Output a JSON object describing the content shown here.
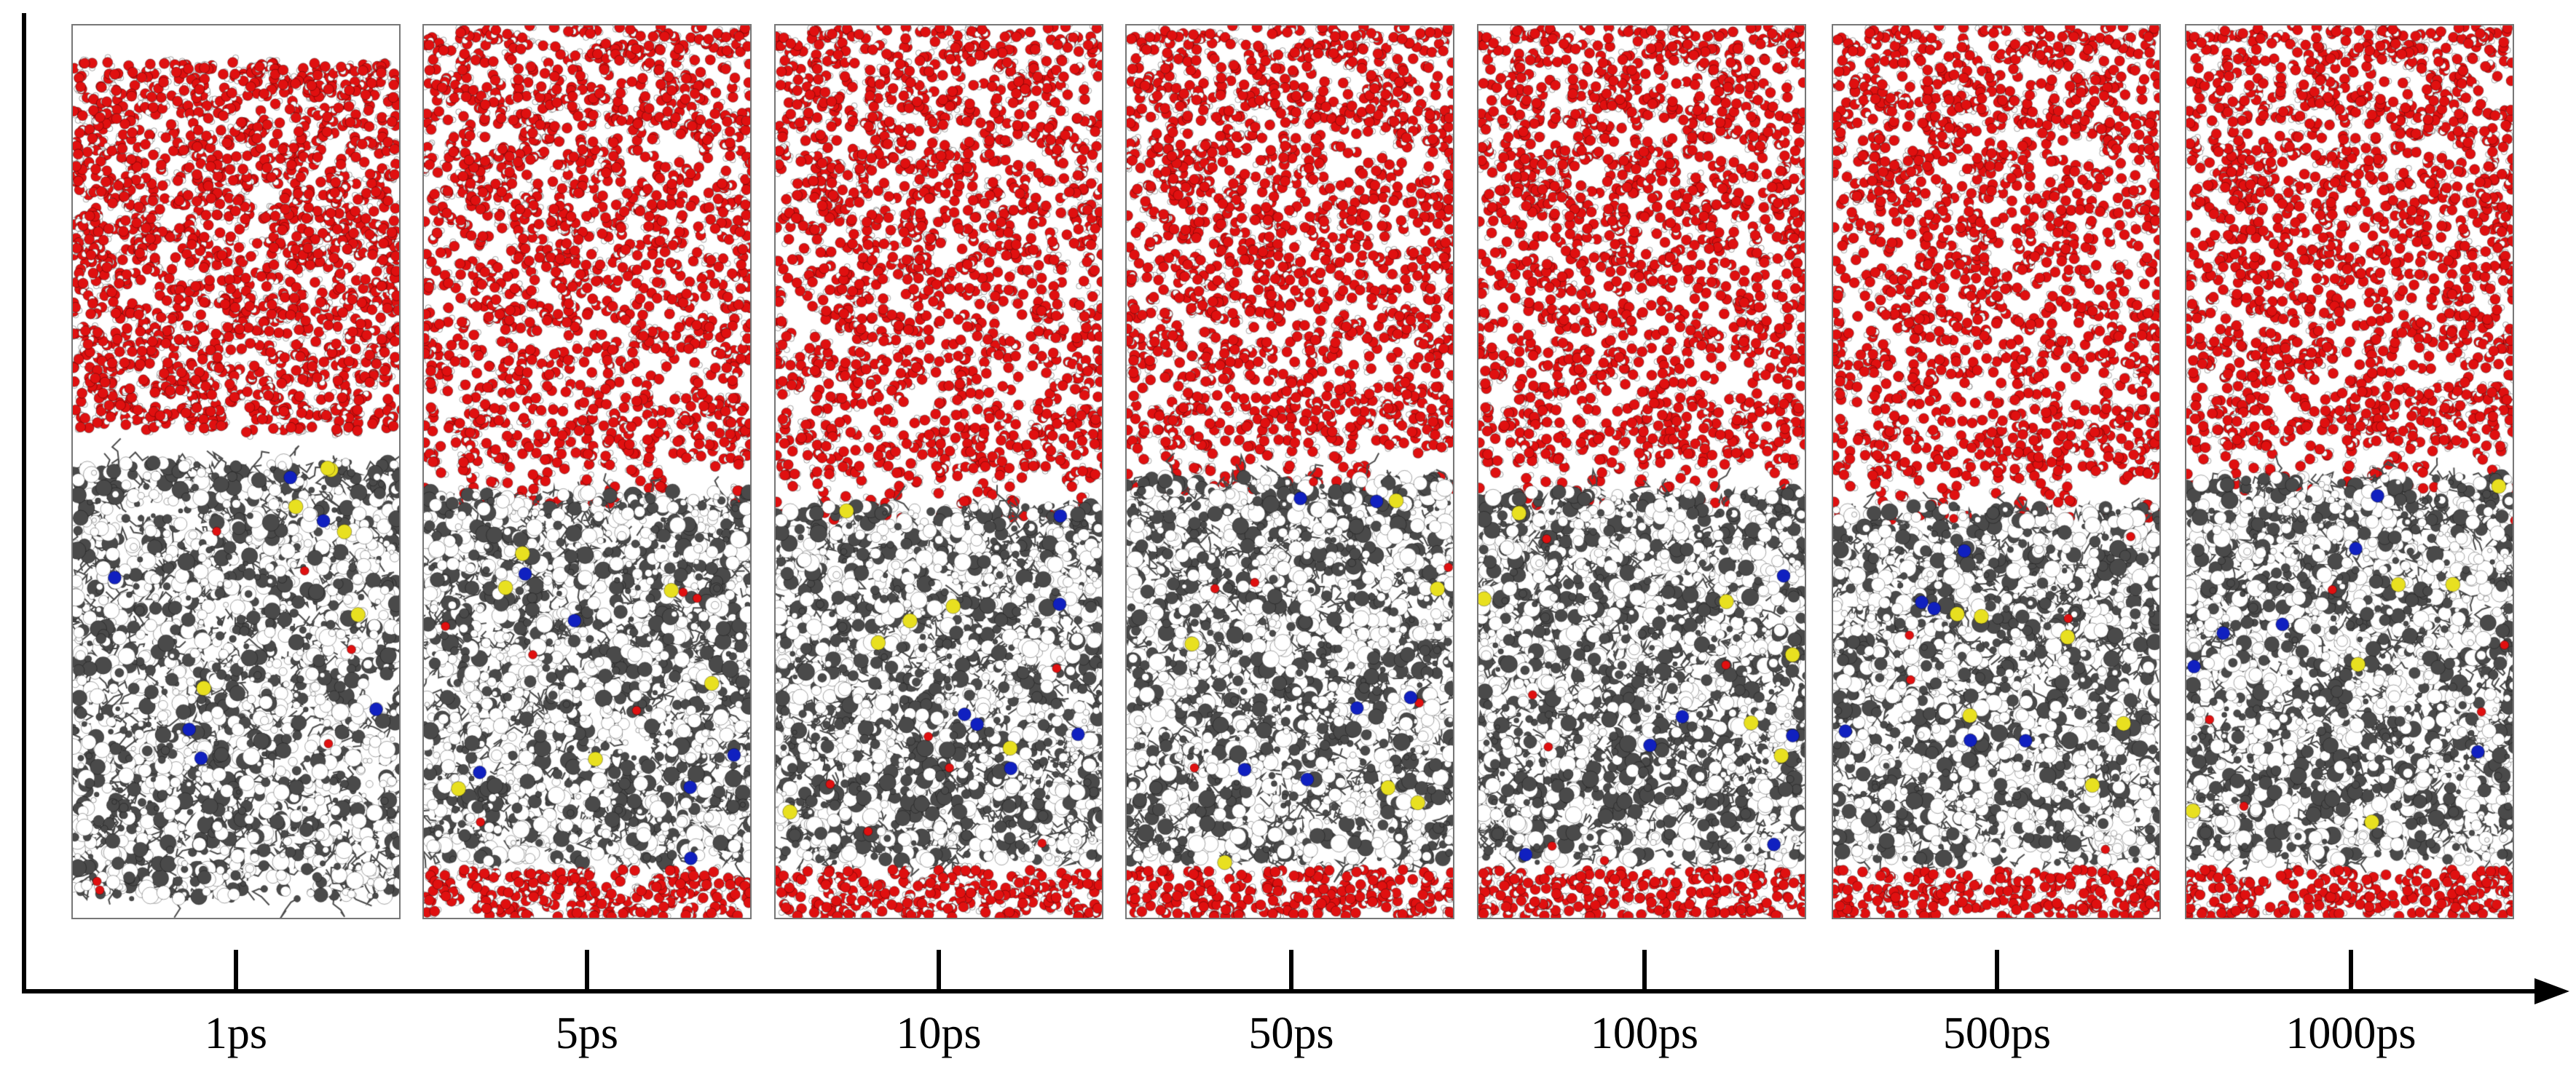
{
  "figure": {
    "time_labels": [
      "1ps",
      "5ps",
      "10ps",
      "50ps",
      "100ps",
      "500ps",
      "1000ps"
    ],
    "colors": {
      "oxygen": "#e01010",
      "hydrogen": "#ffffff",
      "carbon": "#4a4a4a",
      "nitrogen": "#1020c0",
      "sulfur": "#e8e020",
      "axis": "#000000"
    },
    "panels": [
      {
        "time": "1ps",
        "water_bottom_layer": false,
        "water_gap": true
      },
      {
        "time": "5ps",
        "water_bottom_layer": true,
        "water_gap": false
      },
      {
        "time": "10ps",
        "water_bottom_layer": true,
        "water_gap": false
      },
      {
        "time": "50ps",
        "water_bottom_layer": true,
        "water_gap": false
      },
      {
        "time": "100ps",
        "water_bottom_layer": true,
        "water_gap": false
      },
      {
        "time": "500ps",
        "water_bottom_layer": true,
        "water_gap": false
      },
      {
        "time": "1000ps",
        "water_bottom_layer": true,
        "water_gap": false
      }
    ]
  }
}
